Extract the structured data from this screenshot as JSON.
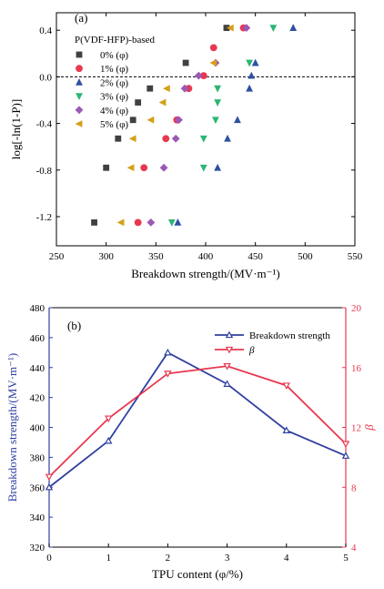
{
  "chart_data": [
    {
      "type": "scatter",
      "panel_label": "(a)",
      "xlabel": "Breakdown strength/(MV·m⁻¹)",
      "ylabel": "log[-ln(1-P)]",
      "xlim": [
        250,
        550
      ],
      "ylim": [
        -1.45,
        0.55
      ],
      "x_ticks": [
        250,
        300,
        350,
        400,
        450,
        500,
        550
      ],
      "y_ticks": [
        -1.2,
        -0.8,
        -0.4,
        0.0,
        0.4
      ],
      "y_tick_labels": [
        "-1.2",
        "-0.8",
        "-0.4",
        "0.0",
        "0.4"
      ],
      "reference_line": {
        "y": 0.0,
        "style": "dashed"
      },
      "legend_title": "P(VDF-HFP)-based",
      "legend_position": "top-left",
      "series": [
        {
          "name": "0% (φ)",
          "marker": "square",
          "color": "#404040",
          "x": [
            288,
            300,
            312,
            327,
            332,
            344,
            380,
            421
          ],
          "y": [
            -1.25,
            -0.78,
            -0.53,
            -0.37,
            -0.22,
            -0.1,
            0.12,
            0.42
          ]
        },
        {
          "name": "1% (φ)",
          "marker": "circle",
          "color": "#e8384f",
          "x": [
            332,
            338,
            360,
            371,
            383,
            398,
            408,
            438
          ],
          "y": [
            -1.25,
            -0.78,
            -0.53,
            -0.37,
            -0.1,
            0.01,
            0.25,
            0.42
          ]
        },
        {
          "name": "2% (φ)",
          "marker": "triangle-up",
          "color": "#2f4fa3",
          "x": [
            372,
            412,
            422,
            432,
            444,
            446,
            450,
            488
          ],
          "y": [
            -1.25,
            -0.78,
            -0.53,
            -0.37,
            -0.1,
            0.01,
            0.12,
            0.42
          ]
        },
        {
          "name": "3% (φ)",
          "marker": "triangle-down",
          "color": "#2bb673",
          "x": [
            366,
            398,
            398,
            410,
            412,
            412,
            444,
            468
          ],
          "y": [
            -1.25,
            -0.78,
            -0.53,
            -0.37,
            -0.22,
            -0.1,
            0.12,
            0.42
          ]
        },
        {
          "name": "4% (φ)",
          "marker": "diamond",
          "color": "#9b59b6",
          "x": [
            345,
            358,
            370,
            373,
            379,
            393,
            410,
            441
          ],
          "y": [
            -1.25,
            -0.78,
            -0.53,
            -0.37,
            -0.1,
            0.01,
            0.12,
            0.42
          ]
        },
        {
          "name": "5% (φ)",
          "marker": "triangle-left",
          "color": "#d4a017",
          "x": [
            315,
            325,
            327,
            345,
            357,
            361,
            408,
            425
          ],
          "y": [
            -1.25,
            -0.78,
            -0.53,
            -0.37,
            -0.22,
            -0.1,
            0.12,
            0.42
          ]
        }
      ]
    },
    {
      "type": "line",
      "panel_label": "(b)",
      "xlabel": "TPU content (φ/%)",
      "ylabel": "Breakdown strength/(MV·m⁻¹)",
      "ylabel_right": "β",
      "x": [
        0,
        1,
        2,
        3,
        4,
        5
      ],
      "xlim": [
        0,
        5
      ],
      "ylim": [
        320,
        480
      ],
      "ylim_right": [
        4,
        20
      ],
      "x_ticks": [
        0,
        1,
        2,
        3,
        4,
        5
      ],
      "y_ticks": [
        320,
        340,
        360,
        380,
        400,
        420,
        440,
        460,
        480
      ],
      "y_ticks_right": [
        4,
        8,
        12,
        16,
        20
      ],
      "legend_position": "top-right",
      "series": [
        {
          "name": "Breakdown strength",
          "axis": "left",
          "marker": "triangle-up",
          "color": "#2f3fa0",
          "values": [
            360,
            391,
            450,
            429,
            398,
            381
          ]
        },
        {
          "name": "β",
          "axis": "right",
          "marker": "triangle-down",
          "color": "#e8384f",
          "values": [
            8.7,
            12.6,
            15.6,
            16.1,
            14.8,
            10.9
          ]
        }
      ]
    }
  ]
}
